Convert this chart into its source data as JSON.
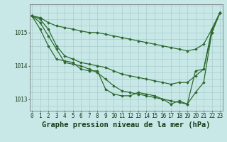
{
  "title": "Graphe pression niveau de la mer (hPa)",
  "lines": [
    {
      "x": [
        0,
        1,
        2,
        3,
        4,
        5,
        6,
        7,
        8,
        9,
        10,
        11,
        12,
        13,
        14,
        15,
        16,
        17,
        18,
        19,
        20,
        21,
        22,
        23
      ],
      "y": [
        1015.5,
        1015.45,
        1015.3,
        1015.2,
        1015.15,
        1015.1,
        1015.05,
        1015.0,
        1015.0,
        1014.95,
        1014.9,
        1014.85,
        1014.8,
        1014.75,
        1014.7,
        1014.65,
        1014.6,
        1014.55,
        1014.5,
        1014.45,
        1014.5,
        1014.65,
        1015.1,
        1015.6
      ]
    },
    {
      "x": [
        0,
        1,
        2,
        3,
        4,
        5,
        6,
        7,
        8,
        9,
        10,
        11,
        12,
        13,
        14,
        15,
        16,
        17,
        18,
        19,
        20,
        21,
        22,
        23
      ],
      "y": [
        1015.5,
        1015.4,
        1015.1,
        1014.6,
        1014.3,
        1014.2,
        1014.1,
        1014.05,
        1014.0,
        1013.95,
        1013.85,
        1013.75,
        1013.7,
        1013.65,
        1013.6,
        1013.55,
        1013.5,
        1013.45,
        1013.5,
        1013.5,
        1013.7,
        1013.9,
        1015.0,
        1015.6
      ]
    },
    {
      "x": [
        0,
        1,
        2,
        3,
        4,
        5,
        6,
        7,
        8,
        9,
        10,
        11,
        12,
        13,
        14,
        15,
        16,
        17,
        18,
        19,
        20,
        21,
        22,
        23
      ],
      "y": [
        1015.5,
        1015.3,
        1014.9,
        1014.5,
        1014.1,
        1014.05,
        1014.0,
        1013.9,
        1013.8,
        1013.6,
        1013.4,
        1013.25,
        1013.2,
        1013.15,
        1013.1,
        1013.05,
        1013.0,
        1012.95,
        1012.9,
        1012.85,
        1013.2,
        1013.5,
        1015.0,
        1015.6
      ]
    },
    {
      "x": [
        0,
        1,
        2,
        3,
        4,
        5,
        6,
        7,
        8,
        9,
        10,
        11,
        12,
        13,
        14,
        15,
        16,
        17,
        18,
        19,
        20,
        21,
        22,
        23
      ],
      "y": [
        1015.5,
        1015.1,
        1014.6,
        1014.2,
        1014.15,
        1014.1,
        1013.9,
        1013.85,
        1013.85,
        1013.3,
        1013.15,
        1013.1,
        1013.1,
        1013.2,
        1013.15,
        1013.1,
        1013.0,
        1012.85,
        1012.95,
        1012.85,
        1013.85,
        1013.9,
        1015.1,
        1015.6
      ]
    }
  ],
  "line_color": "#2d6a2d",
  "bg_color": "#c8e8e8",
  "grid_color": "#aacccc",
  "ylim": [
    1012.65,
    1015.85
  ],
  "yticks": [
    1013,
    1014,
    1015
  ],
  "xlim": [
    -0.3,
    23.3
  ],
  "title_fontsize": 7.5,
  "tick_fontsize": 5.5,
  "title_color": "#1a3a1a",
  "tick_color": "#1a3a1a",
  "marker": "D",
  "markersize": 1.8,
  "linewidth": 0.9
}
